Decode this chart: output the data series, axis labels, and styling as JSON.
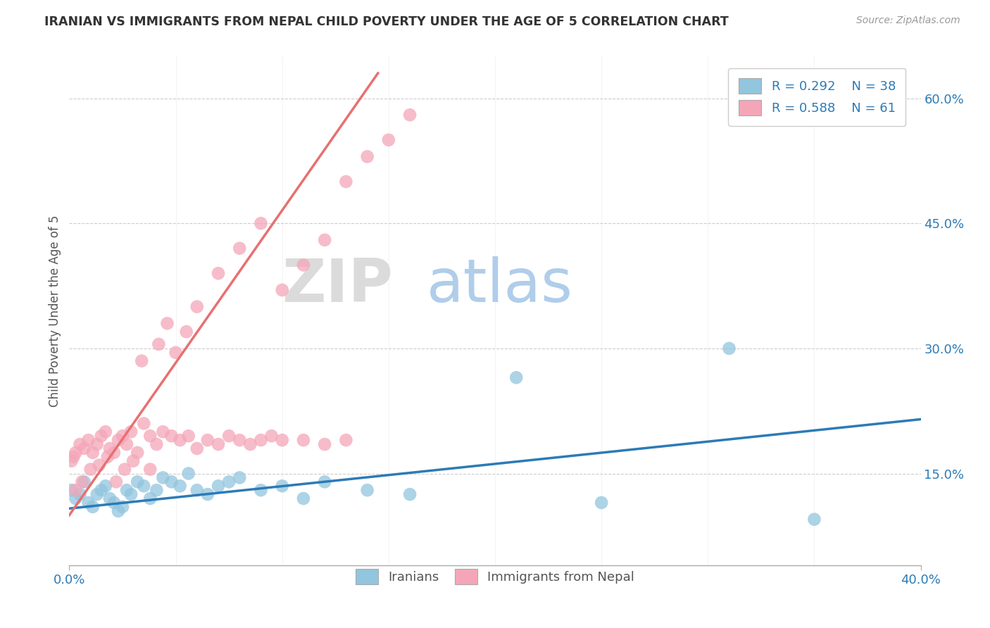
{
  "title": "IRANIAN VS IMMIGRANTS FROM NEPAL CHILD POVERTY UNDER THE AGE OF 5 CORRELATION CHART",
  "source": "Source: ZipAtlas.com",
  "ylabel": "Child Poverty Under the Age of 5",
  "ytick_labels": [
    "15.0%",
    "30.0%",
    "45.0%",
    "60.0%"
  ],
  "ytick_values": [
    0.15,
    0.3,
    0.45,
    0.6
  ],
  "xlim": [
    0.0,
    0.4
  ],
  "ylim": [
    0.04,
    0.65
  ],
  "blue_color": "#92c5de",
  "pink_color": "#f4a6b8",
  "blue_line_color": "#2c7bb6",
  "pink_line_color": "#d7191c",
  "pink_line_color2": "#e87070",
  "watermark_zip": "ZIP",
  "watermark_atlas": "atlas",
  "iranians_x": [
    0.001,
    0.003,
    0.005,
    0.007,
    0.009,
    0.011,
    0.013,
    0.015,
    0.017,
    0.019,
    0.021,
    0.023,
    0.025,
    0.027,
    0.029,
    0.032,
    0.035,
    0.038,
    0.041,
    0.044,
    0.048,
    0.052,
    0.056,
    0.06,
    0.065,
    0.07,
    0.075,
    0.08,
    0.09,
    0.1,
    0.11,
    0.12,
    0.14,
    0.16,
    0.21,
    0.25,
    0.31,
    0.35
  ],
  "iranians_y": [
    0.13,
    0.12,
    0.125,
    0.14,
    0.115,
    0.11,
    0.125,
    0.13,
    0.135,
    0.12,
    0.115,
    0.105,
    0.11,
    0.13,
    0.125,
    0.14,
    0.135,
    0.12,
    0.13,
    0.145,
    0.14,
    0.135,
    0.15,
    0.13,
    0.125,
    0.135,
    0.14,
    0.145,
    0.13,
    0.135,
    0.12,
    0.14,
    0.13,
    0.125,
    0.265,
    0.115,
    0.3,
    0.095
  ],
  "nepal_x": [
    0.001,
    0.002,
    0.003,
    0.005,
    0.007,
    0.009,
    0.011,
    0.013,
    0.015,
    0.017,
    0.019,
    0.021,
    0.023,
    0.025,
    0.027,
    0.029,
    0.032,
    0.035,
    0.038,
    0.041,
    0.044,
    0.048,
    0.052,
    0.056,
    0.06,
    0.065,
    0.07,
    0.075,
    0.08,
    0.085,
    0.09,
    0.095,
    0.1,
    0.11,
    0.12,
    0.13,
    0.003,
    0.006,
    0.01,
    0.014,
    0.018,
    0.022,
    0.026,
    0.03,
    0.034,
    0.038,
    0.042,
    0.046,
    0.05,
    0.055,
    0.06,
    0.07,
    0.08,
    0.09,
    0.1,
    0.11,
    0.12,
    0.13,
    0.14,
    0.15,
    0.16
  ],
  "nepal_y": [
    0.165,
    0.17,
    0.175,
    0.185,
    0.18,
    0.19,
    0.175,
    0.185,
    0.195,
    0.2,
    0.18,
    0.175,
    0.19,
    0.195,
    0.185,
    0.2,
    0.175,
    0.21,
    0.195,
    0.185,
    0.2,
    0.195,
    0.19,
    0.195,
    0.18,
    0.19,
    0.185,
    0.195,
    0.19,
    0.185,
    0.19,
    0.195,
    0.19,
    0.19,
    0.185,
    0.19,
    0.13,
    0.14,
    0.155,
    0.16,
    0.17,
    0.14,
    0.155,
    0.165,
    0.285,
    0.155,
    0.305,
    0.33,
    0.295,
    0.32,
    0.35,
    0.39,
    0.42,
    0.45,
    0.37,
    0.4,
    0.43,
    0.5,
    0.53,
    0.55,
    0.58
  ],
  "iran_line_x": [
    0.0,
    0.4
  ],
  "iran_line_y": [
    0.108,
    0.215
  ],
  "nepal_line_x": [
    0.0,
    0.145
  ],
  "nepal_line_y": [
    0.1,
    0.63
  ]
}
